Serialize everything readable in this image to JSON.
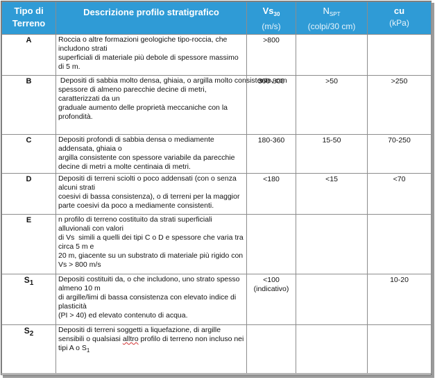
{
  "headers": {
    "type_line1": "Tipo di",
    "type_line2": "Terreno",
    "desc": "Descrizione profilo stratigrafico",
    "vs_main": "Vs",
    "vs_sub": "30",
    "vs_unit": "(m/s)",
    "nspt_main": "N",
    "nspt_sub": "SPT",
    "nspt_unit": "(colpi/30 cm)",
    "cu_main": "cu",
    "cu_unit": "(kPa)"
  },
  "rows": [
    {
      "type": "A",
      "desc": [
        "Roccia o altre formazioni geologiche tipo-roccia, che includono strati",
        "superficiali di materiale più debole di spessore massimo di 5 m."
      ],
      "vs": ">800",
      "nspt": "",
      "cu": ""
    },
    {
      "type": "B",
      "desc": [
        " Depositi di sabbia molto densa, ghiaia, o argilla molto consistente, con",
        "spessore di almeno parecchie decine di metri, caratterizzati da un",
        "graduale aumento delle proprietà meccaniche con la profondità."
      ],
      "vs": "360-800",
      "nspt": ">50",
      "cu": ">250"
    },
    {
      "type": "C",
      "desc": [
        "Depositi profondi di sabbia densa o mediamente addensata, ghiaia o",
        "argilla consistente con spessore variabile da parecchie decine di metri a molte centinaia di metri."
      ],
      "vs": "180-360",
      "nspt": "15-50",
      "cu": "70-250"
    },
    {
      "type": "D",
      "desc": [
        "Depositi di terreni sciolti o poco addensati (con o senza alcuni strati",
        "coesivi di bassa consistenza), o di terreni per la maggior parte coesivi da poco a mediamente consistenti."
      ],
      "vs": "<180",
      "nspt": "<15",
      "cu": "<70"
    },
    {
      "type": "E",
      "desc": [
        "n profilo di terreno costituito da strati superficiali alluvionali con valori",
        "di Vs  simili a quelli dei tipi C o D e spessore che varia tra circa 5 m e",
        "20 m, giacente su un substrato di materiale più rigido con Vs > 800 m/s"
      ],
      "vs": "",
      "nspt": "",
      "cu": ""
    },
    {
      "type": "S",
      "type_sub": "1",
      "desc": [
        "Depositi costituiti da, o che includono, uno strato spesso almeno 10 m",
        "di argille/limi di bassa consistenza con elevato indice di plasticità",
        "(PI > 40) ed elevato contenuto di acqua."
      ],
      "vs": "<100",
      "vs_note": "(indicativo)",
      "nspt": "",
      "cu": "10-20"
    },
    {
      "type": "S",
      "type_sub": "2",
      "desc_a": "Depositi di terreni soggetti a liquefazione, di argille sensibili o qualsiasi ",
      "desc_squig": "alltro",
      "desc_b": " profilo di terreno non incluso nei tipi A o S",
      "desc_b_sub": "1",
      "vs": "",
      "nspt": "",
      "cu": ""
    }
  ],
  "colors": {
    "header_bg": "#2f9bd6",
    "header_text": "#ffffff",
    "border": "#8c8c8c"
  }
}
